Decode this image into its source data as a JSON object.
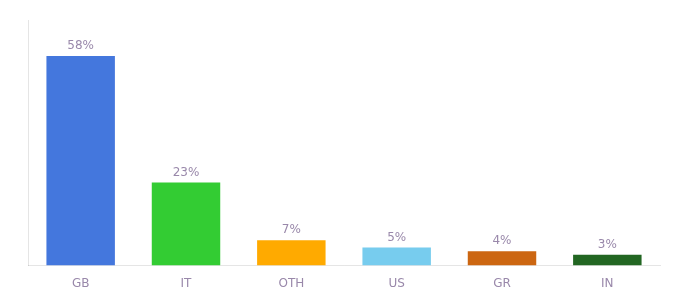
{
  "chart_data": {
    "type": "bar",
    "categories": [
      "GB",
      "IT",
      "OTH",
      "US",
      "GR",
      "IN"
    ],
    "values": [
      58,
      23,
      7,
      5,
      4,
      3
    ],
    "value_labels": [
      "58%",
      "23%",
      "7%",
      "5%",
      "4%",
      "3%"
    ],
    "colors": [
      "#4477dd",
      "#33cc33",
      "#ffaa00",
      "#77ccee",
      "#cc6611",
      "#226622"
    ],
    "ylim": [
      0,
      68
    ],
    "data_labels": true,
    "tick_labels": "x",
    "grid": false
  }
}
